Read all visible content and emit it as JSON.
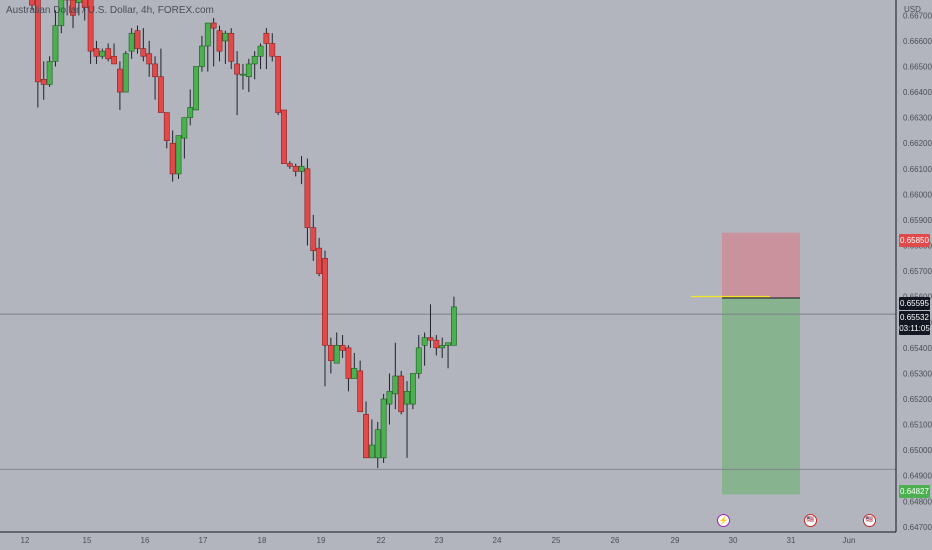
{
  "header": {
    "symbol_title": "Australian Dollar / U.S. Dollar, 4h, FOREX.com",
    "currency": "USD"
  },
  "chart_data": {
    "type": "candlestick",
    "ylim": [
      0.6468,
      0.6676
    ],
    "y_ticks": [
      "0.64700",
      "0.64800",
      "0.64900",
      "0.65000",
      "0.65100",
      "0.65200",
      "0.65300",
      "0.65400",
      "0.65500",
      "0.65600",
      "0.65700",
      "0.65800",
      "0.65900",
      "0.66000",
      "0.66100",
      "0.66200",
      "0.66300",
      "0.66400",
      "0.66500",
      "0.66600",
      "0.66700"
    ],
    "x_ticks": [
      "12",
      "15",
      "16",
      "17",
      "18",
      "19",
      "22",
      "23",
      "24",
      "25",
      "26",
      "29",
      "30",
      "31",
      "Jun"
    ],
    "colors": {
      "up": "#4caf50",
      "down": "#e04a4a",
      "up_border": "#1b5e20",
      "down_border": "#8e1f1f",
      "axis": "#131722",
      "grid_line": "#7c7f89",
      "entry_line": "#f2e61f"
    },
    "candles": [
      {
        "o": 0.6678,
        "h": 0.6679,
        "l": 0.6672,
        "c": 0.6674
      },
      {
        "o": 0.6677,
        "h": 0.6678,
        "l": 0.6634,
        "c": 0.6644
      },
      {
        "o": 0.6645,
        "h": 0.6652,
        "l": 0.6637,
        "c": 0.6643
      },
      {
        "o": 0.6643,
        "h": 0.6654,
        "l": 0.6642,
        "c": 0.6652
      },
      {
        "o": 0.6652,
        "h": 0.6672,
        "l": 0.665,
        "c": 0.6666
      },
      {
        "o": 0.6666,
        "h": 0.6679,
        "l": 0.6663,
        "c": 0.6678
      },
      {
        "o": 0.6678,
        "h": 0.668,
        "l": 0.667,
        "c": 0.6676
      },
      {
        "o": 0.6676,
        "h": 0.668,
        "l": 0.6665,
        "c": 0.667
      },
      {
        "o": 0.6675,
        "h": 0.668,
        "l": 0.667,
        "c": 0.6678
      },
      {
        "o": 0.6678,
        "h": 0.668,
        "l": 0.6668,
        "c": 0.6673
      },
      {
        "o": 0.6679,
        "h": 0.668,
        "l": 0.6651,
        "c": 0.6656
      },
      {
        "o": 0.6657,
        "h": 0.666,
        "l": 0.6651,
        "c": 0.6654
      },
      {
        "o": 0.6654,
        "h": 0.6657,
        "l": 0.6653,
        "c": 0.6656
      },
      {
        "o": 0.6657,
        "h": 0.6659,
        "l": 0.6652,
        "c": 0.6653
      },
      {
        "o": 0.6654,
        "h": 0.6659,
        "l": 0.6652,
        "c": 0.6651
      },
      {
        "o": 0.6649,
        "h": 0.6652,
        "l": 0.6633,
        "c": 0.664
      },
      {
        "o": 0.664,
        "h": 0.6656,
        "l": 0.664,
        "c": 0.6655
      },
      {
        "o": 0.6656,
        "h": 0.6665,
        "l": 0.6653,
        "c": 0.6663
      },
      {
        "o": 0.6664,
        "h": 0.6666,
        "l": 0.6655,
        "c": 0.6657
      },
      {
        "o": 0.6657,
        "h": 0.6665,
        "l": 0.6652,
        "c": 0.6654
      },
      {
        "o": 0.6655,
        "h": 0.666,
        "l": 0.6646,
        "c": 0.6651
      },
      {
        "o": 0.6651,
        "h": 0.6654,
        "l": 0.6637,
        "c": 0.6646
      },
      {
        "o": 0.6646,
        "h": 0.6657,
        "l": 0.6632,
        "c": 0.6632
      },
      {
        "o": 0.6632,
        "h": 0.6632,
        "l": 0.6618,
        "c": 0.6621
      },
      {
        "o": 0.662,
        "h": 0.6625,
        "l": 0.6605,
        "c": 0.6608
      },
      {
        "o": 0.6608,
        "h": 0.6623,
        "l": 0.6606,
        "c": 0.6623
      },
      {
        "o": 0.6622,
        "h": 0.663,
        "l": 0.6614,
        "c": 0.663
      },
      {
        "o": 0.663,
        "h": 0.6641,
        "l": 0.6627,
        "c": 0.6634
      },
      {
        "o": 0.6633,
        "h": 0.665,
        "l": 0.6633,
        "c": 0.665
      },
      {
        "o": 0.665,
        "h": 0.6662,
        "l": 0.6648,
        "c": 0.6658
      },
      {
        "o": 0.6658,
        "h": 0.6667,
        "l": 0.6648,
        "c": 0.6667
      },
      {
        "o": 0.6667,
        "h": 0.6669,
        "l": 0.665,
        "c": 0.6665
      },
      {
        "o": 0.6664,
        "h": 0.6666,
        "l": 0.6652,
        "c": 0.6656
      },
      {
        "o": 0.666,
        "h": 0.6664,
        "l": 0.6651,
        "c": 0.6663
      },
      {
        "o": 0.6663,
        "h": 0.6665,
        "l": 0.6649,
        "c": 0.6652
      },
      {
        "o": 0.6651,
        "h": 0.6656,
        "l": 0.6631,
        "c": 0.6647
      },
      {
        "o": 0.6647,
        "h": 0.6651,
        "l": 0.6641,
        "c": 0.6647
      },
      {
        "o": 0.6646,
        "h": 0.6653,
        "l": 0.664,
        "c": 0.6651
      },
      {
        "o": 0.6651,
        "h": 0.6656,
        "l": 0.6645,
        "c": 0.6654
      },
      {
        "o": 0.6654,
        "h": 0.6659,
        "l": 0.6649,
        "c": 0.6658
      },
      {
        "o": 0.6663,
        "h": 0.6665,
        "l": 0.6649,
        "c": 0.6659
      },
      {
        "o": 0.6659,
        "h": 0.6663,
        "l": 0.6652,
        "c": 0.6654
      },
      {
        "o": 0.6654,
        "h": 0.6654,
        "l": 0.6631,
        "c": 0.6632
      },
      {
        "o": 0.6633,
        "h": 0.6633,
        "l": 0.6612,
        "c": 0.6612
      },
      {
        "o": 0.6612,
        "h": 0.6613,
        "l": 0.661,
        "c": 0.6611
      },
      {
        "o": 0.6611,
        "h": 0.6612,
        "l": 0.6607,
        "c": 0.6609
      },
      {
        "o": 0.6609,
        "h": 0.6615,
        "l": 0.6604,
        "c": 0.6611
      },
      {
        "o": 0.661,
        "h": 0.6614,
        "l": 0.658,
        "c": 0.6587
      },
      {
        "o": 0.6587,
        "h": 0.6592,
        "l": 0.6574,
        "c": 0.6578
      },
      {
        "o": 0.6579,
        "h": 0.6583,
        "l": 0.6568,
        "c": 0.6569
      },
      {
        "o": 0.6575,
        "h": 0.6578,
        "l": 0.6525,
        "c": 0.6541
      },
      {
        "o": 0.6541,
        "h": 0.6544,
        "l": 0.653,
        "c": 0.6535
      },
      {
        "o": 0.6534,
        "h": 0.6546,
        "l": 0.6534,
        "c": 0.6541
      },
      {
        "o": 0.6541,
        "h": 0.6545,
        "l": 0.6536,
        "c": 0.6539
      },
      {
        "o": 0.654,
        "h": 0.6541,
        "l": 0.6523,
        "c": 0.6528
      },
      {
        "o": 0.6528,
        "h": 0.6538,
        "l": 0.6528,
        "c": 0.6532
      },
      {
        "o": 0.6531,
        "h": 0.6535,
        "l": 0.6515,
        "c": 0.6515
      },
      {
        "o": 0.6514,
        "h": 0.6519,
        "l": 0.6497,
        "c": 0.6497
      },
      {
        "o": 0.6497,
        "h": 0.6512,
        "l": 0.6497,
        "c": 0.6502
      },
      {
        "o": 0.6497,
        "h": 0.6511,
        "l": 0.6493,
        "c": 0.6508
      },
      {
        "o": 0.6497,
        "h": 0.6522,
        "l": 0.6495,
        "c": 0.652
      },
      {
        "o": 0.6518,
        "h": 0.653,
        "l": 0.651,
        "c": 0.6523
      },
      {
        "o": 0.6522,
        "h": 0.6542,
        "l": 0.6516,
        "c": 0.6529
      },
      {
        "o": 0.6529,
        "h": 0.6531,
        "l": 0.6514,
        "c": 0.6515
      },
      {
        "o": 0.6518,
        "h": 0.6527,
        "l": 0.6497,
        "c": 0.6523
      },
      {
        "o": 0.6518,
        "h": 0.6529,
        "l": 0.6516,
        "c": 0.653
      },
      {
        "o": 0.653,
        "h": 0.6545,
        "l": 0.6528,
        "c": 0.654
      },
      {
        "o": 0.6541,
        "h": 0.6546,
        "l": 0.6533,
        "c": 0.6544
      },
      {
        "o": 0.6544,
        "h": 0.6557,
        "l": 0.654,
        "c": 0.6543
      },
      {
        "o": 0.6543,
        "h": 0.6545,
        "l": 0.6537,
        "c": 0.654
      },
      {
        "o": 0.654,
        "h": 0.6544,
        "l": 0.6536,
        "c": 0.6541
      },
      {
        "o": 0.6541,
        "h": 0.6541,
        "l": 0.6532,
        "c": 0.6542
      },
      {
        "o": 0.6541,
        "h": 0.656,
        "l": 0.6541,
        "c": 0.6556
      }
    ],
    "levels": {
      "stop_loss": 0.6585,
      "current_price": 0.65532,
      "entry": 0.65595,
      "take_profit": 0.64827,
      "horizontal_line": 0.64925
    },
    "badges": {
      "stop_loss": "0.65850",
      "entry": "0.65595",
      "current_price": "0.65532",
      "countdown": "03:11:05",
      "take_profit": "0.64827"
    }
  }
}
